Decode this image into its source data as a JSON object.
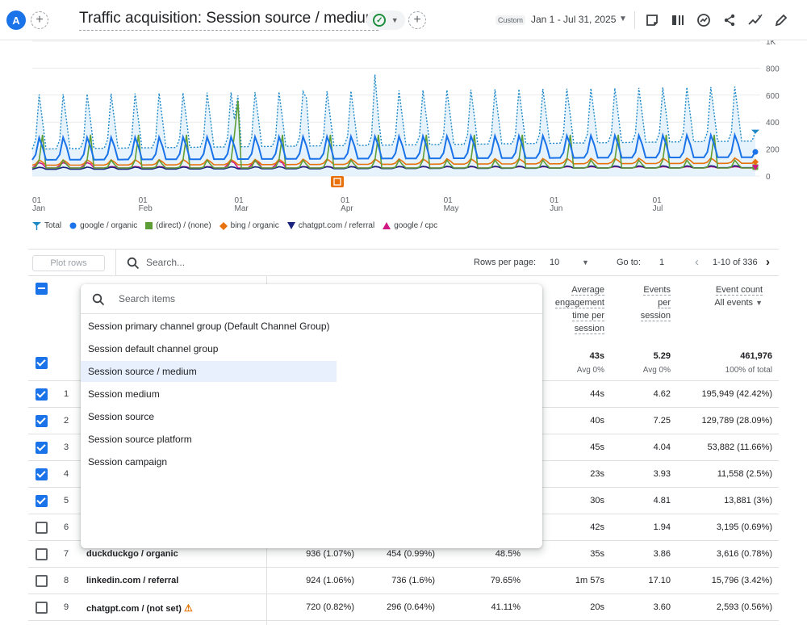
{
  "topbar": {
    "avatar_letter": "A",
    "title": "Traffic acquisition: Session source / medium",
    "custom_label": "Custom",
    "date_range": "Jan 1 - Jul 31, 2025",
    "icons": [
      "plus-icon",
      "check-circle-icon",
      "chevron-down-icon",
      "comment-icon",
      "compare-icon",
      "insights-icon",
      "share-icon",
      "trend-icon",
      "edit-icon"
    ]
  },
  "chart": {
    "y_ticks": [
      "1K",
      "800",
      "600",
      "400",
      "200",
      "0"
    ],
    "x_ticks": [
      {
        "day": "01",
        "month": "Jan"
      },
      {
        "day": "01",
        "month": "Feb"
      },
      {
        "day": "01",
        "month": "Mar"
      },
      {
        "day": "01",
        "month": "Apr"
      },
      {
        "day": "01",
        "month": "May"
      },
      {
        "day": "01",
        "month": "Jun"
      },
      {
        "day": "01",
        "month": "Jul"
      }
    ],
    "legend": [
      {
        "label": "Total",
        "color": "#1e88c7",
        "marker": "pin"
      },
      {
        "label": "google / organic",
        "color": "#1a73e8",
        "marker": "circle"
      },
      {
        "label": "(direct) / (none)",
        "color": "#5e9e37",
        "marker": "square"
      },
      {
        "label": "bing / organic",
        "color": "#e8710a",
        "marker": "diamond"
      },
      {
        "label": "chatgpt.com / referral",
        "color": "#1a237e",
        "marker": "triangle-down"
      },
      {
        "label": "google / cpc",
        "color": "#d01884",
        "marker": "triangle-up"
      }
    ]
  },
  "toolbar": {
    "plot_rows": "Plot rows",
    "search_placeholder": "Search...",
    "rows_per_page_label": "Rows per page:",
    "rows_per_page": "10",
    "goto_label": "Go to:",
    "goto_value": "1",
    "pagination": "1-10 of 336"
  },
  "columns": {
    "avg_engagement": [
      "Average",
      "engagement",
      "time per",
      "session"
    ],
    "events_per_session": [
      "Events",
      "per",
      "session"
    ],
    "event_count": "Event count",
    "event_count_filter": "All events"
  },
  "totals": {
    "avg_engagement": "43s",
    "avg_engagement_sub": "Avg 0%",
    "events_per_session": "5.29",
    "events_per_session_sub": "Avg 0%",
    "event_count": "461,976",
    "event_count_sub": "100% of total"
  },
  "rows": [
    {
      "n": "1",
      "dim": "",
      "sessions": "",
      "engaged": "",
      "rate": "",
      "avg": "44s",
      "eps": "4.62",
      "events": "195,949 (42.42%)",
      "checked": true
    },
    {
      "n": "2",
      "dim": "",
      "sessions": "",
      "engaged": "",
      "rate": "",
      "avg": "40s",
      "eps": "7.25",
      "events": "129,789 (28.09%)",
      "checked": true
    },
    {
      "n": "3",
      "dim": "",
      "sessions": "",
      "engaged": "",
      "rate": "",
      "avg": "45s",
      "eps": "4.04",
      "events": "53,882 (11.66%)",
      "checked": true
    },
    {
      "n": "4",
      "dim": "",
      "sessions": "",
      "engaged": "",
      "rate": "",
      "avg": "23s",
      "eps": "3.93",
      "events": "11,558 (2.5%)",
      "checked": true
    },
    {
      "n": "5",
      "dim": "",
      "sessions": "",
      "engaged": "",
      "rate": "",
      "avg": "30s",
      "eps": "4.81",
      "events": "13,881 (3%)",
      "checked": true
    },
    {
      "n": "6",
      "dim": "",
      "sessions": "",
      "engaged": "",
      "rate": "",
      "avg": "42s",
      "eps": "1.94",
      "events": "3,195 (0.69%)",
      "checked": false
    },
    {
      "n": "7",
      "dim": "duckduckgo / organic",
      "sessions": "936 (1.07%)",
      "engaged": "454 (0.99%)",
      "rate": "48.5%",
      "avg": "35s",
      "eps": "3.86",
      "events": "3,616 (0.78%)",
      "checked": false
    },
    {
      "n": "8",
      "dim": "linkedin.com / referral",
      "sessions": "924 (1.06%)",
      "engaged": "736 (1.6%)",
      "rate": "79.65%",
      "avg": "1m 57s",
      "eps": "17.10",
      "events": "15,796 (3.42%)",
      "checked": false
    },
    {
      "n": "9",
      "dim": "chatgpt.com / (not set)",
      "sessions": "720 (0.82%)",
      "engaged": "296 (0.64%)",
      "rate": "41.11%",
      "avg": "20s",
      "eps": "3.60",
      "events": "2,593 (0.56%)",
      "checked": false,
      "warning": true
    }
  ],
  "dropdown": {
    "search_placeholder": "Search items",
    "items": [
      "Session primary channel group (Default Channel Group)",
      "Session default channel group",
      "Session source / medium",
      "Session medium",
      "Session source",
      "Session source platform",
      "Session campaign"
    ],
    "selected_index": 2
  }
}
